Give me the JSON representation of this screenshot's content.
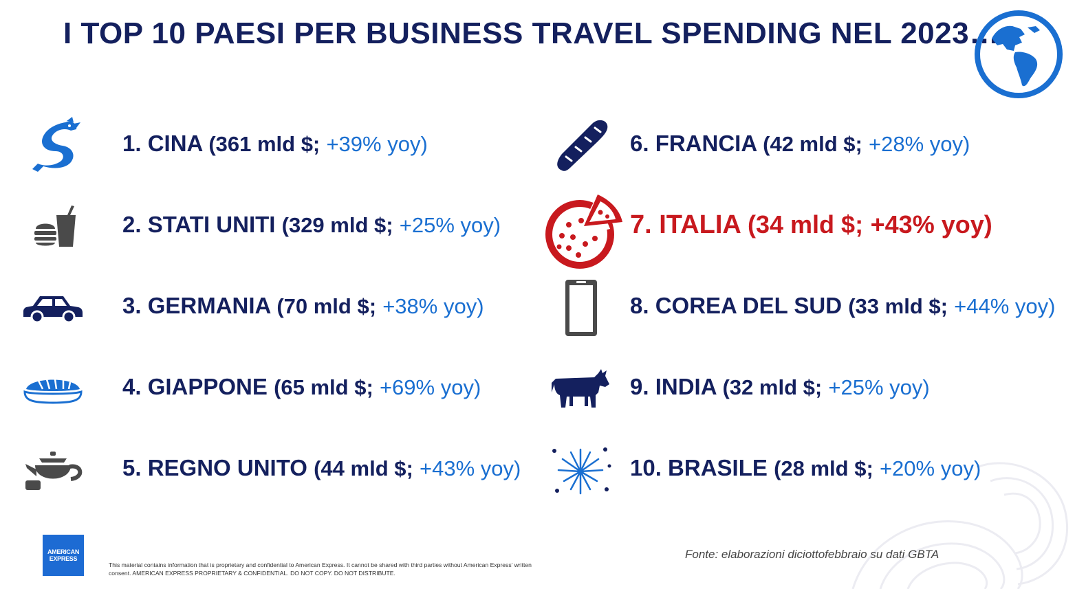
{
  "header": {
    "title": "I TOP 10 PAESI PER BUSINESS TRAVEL SPENDING NEL 2023…",
    "globe_icon": "globe-americas-icon"
  },
  "colors": {
    "navy": "#14205e",
    "blue": "#1a6fd1",
    "red": "#c8191e",
    "gray": "#4a4a4a"
  },
  "countries": [
    {
      "rank_name": "1. CINA",
      "amount": "(361 mld $;",
      "yoy": "+39% yoy)",
      "icon": "dragon-icon"
    },
    {
      "rank_name": "2. STATI UNITI",
      "amount": "(329 mld $;",
      "yoy": "+25% yoy)",
      "icon": "fast-food-icon"
    },
    {
      "rank_name": "3. GERMANIA",
      "amount": "(70 mld $;",
      "yoy": "+38% yoy)",
      "icon": "car-icon"
    },
    {
      "rank_name": "4. GIAPPONE",
      "amount": "(65 mld $;",
      "yoy": "+69% yoy)",
      "icon": "sushi-icon"
    },
    {
      "rank_name": "5. REGNO UNITO",
      "amount": "(44 mld $;",
      "yoy": "+43% yoy)",
      "icon": "teapot-icon"
    },
    {
      "rank_name": "6. FRANCIA",
      "amount": "(42 mld $;",
      "yoy": "+28% yoy)",
      "icon": "baguette-icon"
    },
    {
      "rank_name": "7. ITALIA",
      "amount": "(34 mld $;",
      "yoy": "+43% yoy)",
      "icon": "pizza-icon"
    },
    {
      "rank_name": "8. COREA DEL SUD",
      "amount": "(33 mld $;",
      "yoy": "+44% yoy)",
      "icon": "smartphone-icon"
    },
    {
      "rank_name": "9. INDIA",
      "amount": "(32 mld $;",
      "yoy": "+25% yoy)",
      "icon": "cow-icon"
    },
    {
      "rank_name": "10. BRASILE",
      "amount": "(28 mld $;",
      "yoy": "+20% yoy)",
      "icon": "fireworks-icon"
    }
  ],
  "footer": {
    "logo_line1": "AMERICAN",
    "logo_line2": "EXPRESS",
    "disclaimer": "This material contains information that is proprietary and confidential to American Express. It cannot be shared with third parties without American Express’ written consent. AMERICAN EXPRESS PROPRIETARY & CONFIDENTIAL. DO NOT COPY. DO NOT DISTRIBUTE.",
    "source": "Fonte: elaborazioni diciottofebbraio su dati GBTA"
  }
}
